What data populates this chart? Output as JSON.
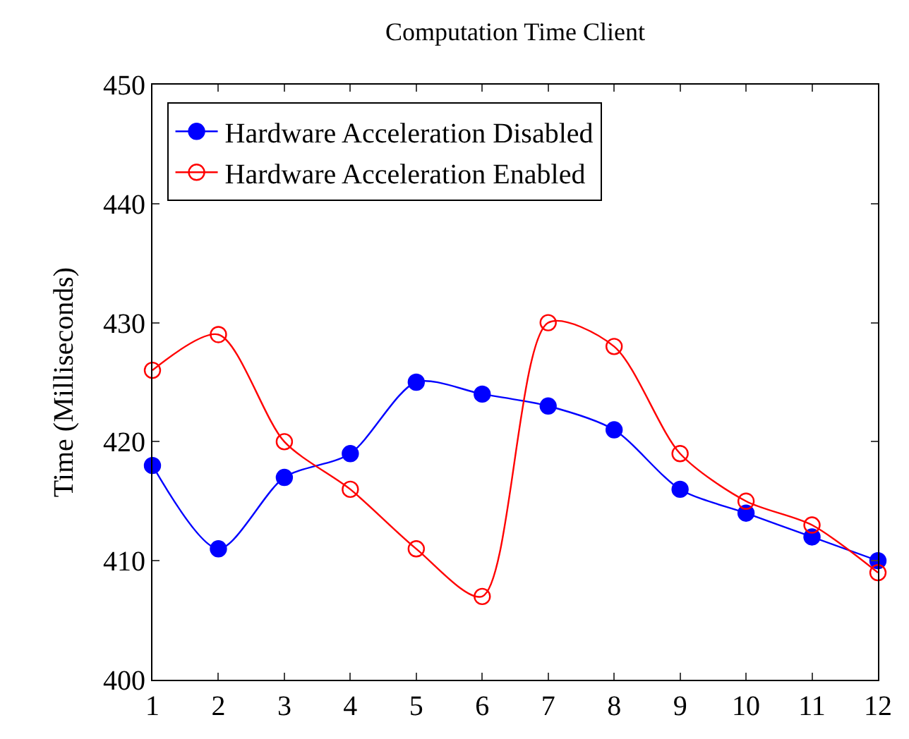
{
  "chart_data": {
    "type": "line",
    "title": "Computation Time Client",
    "ylabel": "Time (Milliseconds)",
    "x": [
      1,
      2,
      3,
      4,
      5,
      6,
      7,
      8,
      9,
      10,
      11,
      12
    ],
    "series": [
      {
        "name": "Hardware Acceleration Disabled",
        "color": "#0000ff",
        "marker": "circle",
        "values": [
          418,
          411,
          417,
          419,
          425,
          424,
          423,
          421,
          416,
          414,
          412,
          410
        ]
      },
      {
        "name": "Hardware Acceleration Enabled",
        "color": "#ff0000",
        "marker": "circle-open",
        "values": [
          426,
          429,
          420,
          416,
          411,
          407,
          430,
          428,
          419,
          415,
          413,
          409
        ]
      }
    ],
    "xlim": [
      1,
      12
    ],
    "xticks": [
      1,
      2,
      3,
      4,
      5,
      6,
      7,
      8,
      9,
      10,
      11,
      12
    ],
    "ylim": [
      400,
      450
    ],
    "yticks": [
      400,
      410,
      420,
      430,
      440,
      450
    ],
    "legend": "top left",
    "line_style": "solid"
  }
}
